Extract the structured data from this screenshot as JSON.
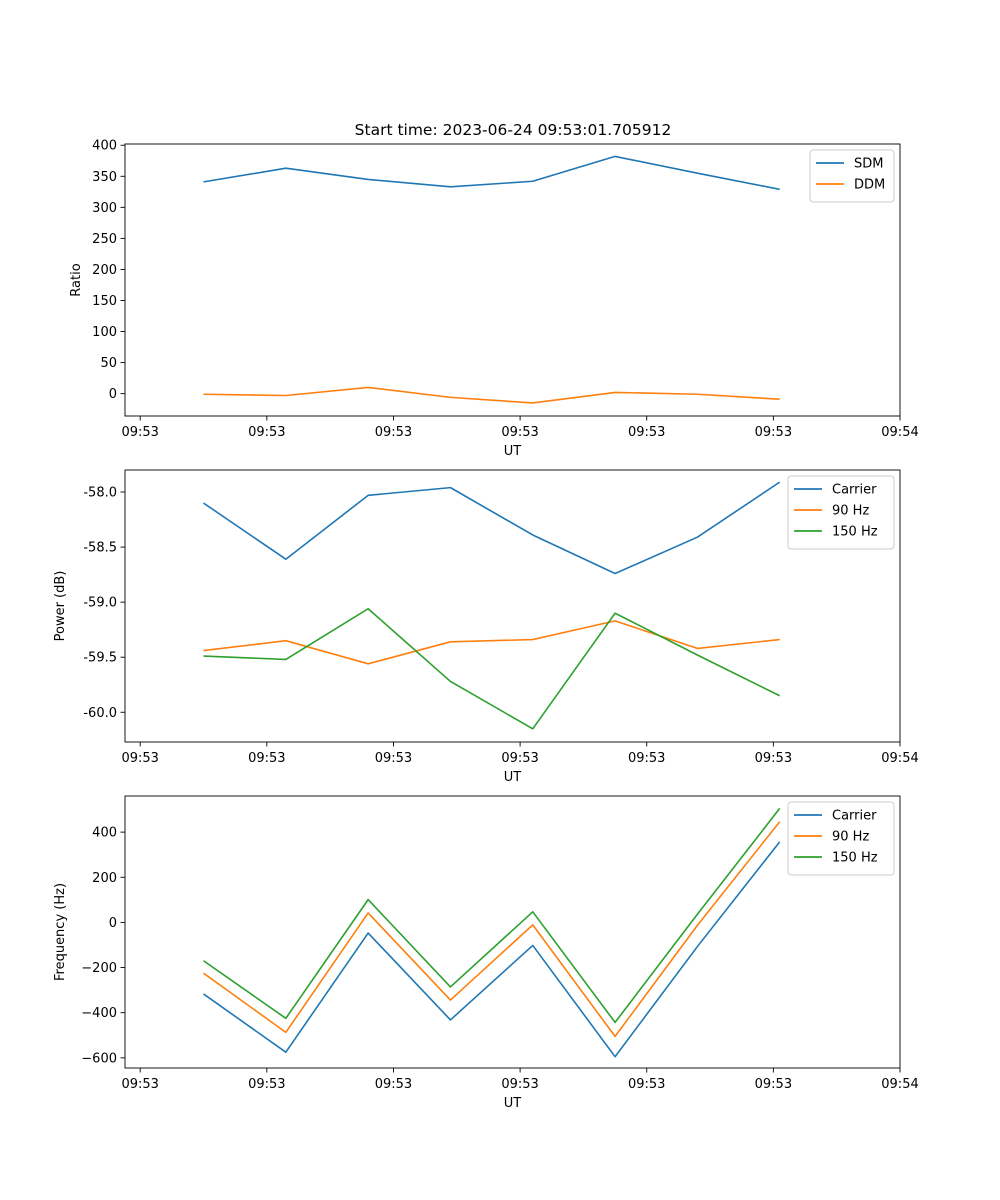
{
  "figure": {
    "title": "Start time: 2023-06-24 09:53:01.705912"
  },
  "chart_data": [
    {
      "type": "line",
      "xlabel": "UT",
      "ylabel": "Ratio",
      "x_tick_labels": [
        "09:53",
        "09:53",
        "09:53",
        "09:53",
        "09:53",
        "09:53",
        "09:54"
      ],
      "x_ticks": [
        0,
        1,
        2,
        3,
        4,
        5,
        6
      ],
      "xlim": [
        -0.12,
        6.0
      ],
      "y_ticks": [
        0,
        50,
        100,
        150,
        200,
        250,
        300,
        350,
        400
      ],
      "y_tick_labels": [
        "0",
        "50",
        "100",
        "150",
        "200",
        "250",
        "300",
        "350",
        "400"
      ],
      "ylim": [
        -36,
        402
      ],
      "legend": "upper-right",
      "x": [
        0.5,
        1.15,
        1.8,
        2.45,
        3.1,
        3.75,
        4.4,
        5.05
      ],
      "series": [
        {
          "name": "SDM",
          "color": "#1f77b4",
          "values": [
            341,
            363,
            345,
            333,
            342,
            382,
            355,
            329
          ]
        },
        {
          "name": "DDM",
          "color": "#ff7f0e",
          "values": [
            -1,
            -3,
            10,
            -6,
            -15,
            2,
            -1,
            -9
          ]
        }
      ]
    },
    {
      "type": "line",
      "xlabel": "UT",
      "ylabel": "Power (dB)",
      "x_tick_labels": [
        "09:53",
        "09:53",
        "09:53",
        "09:53",
        "09:53",
        "09:53",
        "09:54"
      ],
      "x_ticks": [
        0,
        1,
        2,
        3,
        4,
        5,
        6
      ],
      "xlim": [
        -0.12,
        6.0
      ],
      "y_ticks": [
        -60.0,
        -59.5,
        -59.0,
        -58.5,
        -58.0
      ],
      "y_tick_labels": [
        "-60.0",
        "-59.5",
        "-59.0",
        "-58.5",
        "-58.0"
      ],
      "ylim": [
        -60.27,
        -57.8
      ],
      "legend": "upper-right",
      "x": [
        0.5,
        1.15,
        1.8,
        2.45,
        3.1,
        3.75,
        4.4,
        5.05
      ],
      "series": [
        {
          "name": "Carrier",
          "color": "#1f77b4",
          "values": [
            -58.1,
            -58.61,
            -58.03,
            -57.96,
            -58.39,
            -58.74,
            -58.41,
            -57.91
          ]
        },
        {
          "name": "90 Hz",
          "color": "#ff7f0e",
          "values": [
            -59.44,
            -59.35,
            -59.56,
            -59.36,
            -59.34,
            -59.17,
            -59.42,
            -59.34
          ]
        },
        {
          "name": "150 Hz",
          "color": "#2ca02c",
          "values": [
            -59.49,
            -59.52,
            -59.06,
            -59.72,
            -60.15,
            -59.1,
            -59.48,
            -59.85
          ]
        }
      ]
    },
    {
      "type": "line",
      "xlabel": "UT",
      "ylabel": "Frequency (Hz)",
      "x_tick_labels": [
        "09:53",
        "09:53",
        "09:53",
        "09:53",
        "09:53",
        "09:53",
        "09:54"
      ],
      "x_ticks": [
        0,
        1,
        2,
        3,
        4,
        5,
        6
      ],
      "xlim": [
        -0.12,
        6.0
      ],
      "y_ticks": [
        -600,
        -400,
        -200,
        0,
        200,
        400
      ],
      "y_tick_labels": [
        "−600",
        "−400",
        "−200",
        "0",
        "200",
        "400"
      ],
      "ylim": [
        -645,
        560
      ],
      "legend": "upper-right",
      "x": [
        0.5,
        1.15,
        1.8,
        2.45,
        3.1,
        3.75,
        4.4,
        5.05
      ],
      "series": [
        {
          "name": "Carrier",
          "color": "#1f77b4",
          "values": [
            -317,
            -575,
            -47,
            -432,
            -102,
            -595,
            -107,
            357
          ]
        },
        {
          "name": "90 Hz",
          "color": "#ff7f0e",
          "values": [
            -225,
            -487,
            42,
            -344,
            -11,
            -505,
            -13,
            446
          ]
        },
        {
          "name": "150 Hz",
          "color": "#2ca02c",
          "values": [
            -170,
            -425,
            101,
            -286,
            47,
            -443,
            36,
            505
          ]
        }
      ]
    }
  ]
}
